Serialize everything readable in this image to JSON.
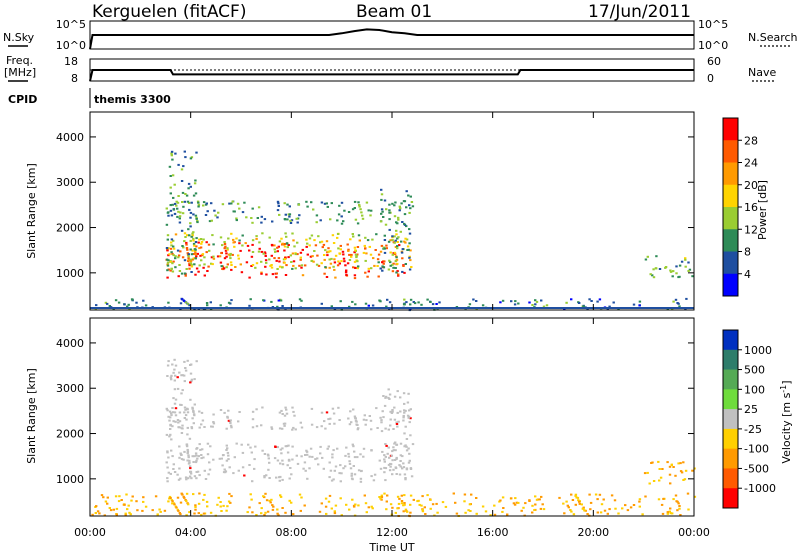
{
  "header": {
    "station": "Kerguelen (fitACF)",
    "beam": "Beam 01",
    "date": "17/Jun/2011"
  },
  "noise_panel": {
    "left_label": "N.Sky",
    "left_ticks": [
      "10^5",
      "10^0"
    ],
    "right_ticks": [
      "10^5",
      "10^0"
    ],
    "right_label": "N.Search"
  },
  "freq_panel": {
    "label_line1": "Freq.",
    "label_line2": "[MHz]",
    "left_ticks": [
      "18",
      "8"
    ],
    "right_ticks": [
      "60",
      "0"
    ],
    "right_label": "Nave"
  },
  "cpid": {
    "label": "CPID",
    "value": "themis 3300"
  },
  "power_colorbar": {
    "label": "Power [dB]",
    "tick_labels": [
      "28",
      "24",
      "20",
      "16",
      "12",
      "8",
      "4"
    ],
    "colors": [
      "#ff0000",
      "#ff5a00",
      "#ff9a00",
      "#ffd400",
      "#9acd32",
      "#2e8b57",
      "#1f4fa0",
      "#0000ff"
    ]
  },
  "velocity_colorbar": {
    "label_main": "Velocity  [m s",
    "label_exp": "-1",
    "label_end": "]",
    "tick_labels": [
      "1000",
      "500",
      "100",
      "25",
      "-25",
      "-100",
      "-500",
      "-1000"
    ],
    "colors": [
      "#0030c0",
      "#2e7d6b",
      "#55aa55",
      "#6fdc3c",
      "#c0c0c0",
      "#ffd000",
      "#ff9a00",
      "#ff5a00",
      "#ff0000"
    ]
  },
  "y_axis": {
    "label": "Slant Range [km]",
    "tick_labels": [
      "4000",
      "3000",
      "2000",
      "1000"
    ]
  },
  "x_axis": {
    "label": "Time UT",
    "tick_labels": [
      "00:00",
      "04:00",
      "08:00",
      "12:00",
      "16:00",
      "20:00",
      "00:00"
    ]
  },
  "chart_data": [
    {
      "type": "line",
      "panel": "noise",
      "description_series": "N.Sky (solid) noise level, roughly constant with small spikes 10:00-12:30",
      "x_hours": [
        0.0,
        0.1,
        9.5,
        10.0,
        10.5,
        11.0,
        11.5,
        12.0,
        12.5,
        13.0,
        24.0
      ],
      "series": [
        {
          "name": "N.Sky",
          "values": [
            0,
            2.5,
            2.5,
            2.8,
            3.2,
            3.5,
            3.4,
            3.0,
            2.8,
            2.5,
            2.5
          ]
        }
      ],
      "ylim": [
        0,
        5
      ]
    },
    {
      "type": "line",
      "panel": "frequency",
      "x_hours": [
        0.0,
        0.1,
        3.2,
        3.3,
        17.0,
        17.1,
        24.0
      ],
      "series": [
        {
          "name": "Freq.",
          "values": [
            8,
            13,
            13,
            11,
            11,
            13,
            13
          ]
        },
        {
          "name": "Nave",
          "values": [
            30,
            30,
            30,
            30,
            30,
            30,
            30
          ]
        }
      ],
      "ylim": [
        8,
        18
      ]
    },
    {
      "type": "heatmap",
      "panel": "power",
      "xlabel": "Time UT",
      "ylabel": "Slant Range [km]",
      "xlim_hours": [
        0,
        24
      ],
      "ylim_km": [
        180,
        4550
      ],
      "colorbar": "Power [dB]",
      "regions": [
        {
          "t_start": 3.0,
          "t_end": 12.5,
          "range_start": 900,
          "range_end": 1700,
          "value_db": 26
        },
        {
          "t_start": 3.0,
          "t_end": 12.8,
          "range_start": 1100,
          "range_end": 1900,
          "value_db": 14
        },
        {
          "t_start": 3.0,
          "t_end": 12.8,
          "range_start": 2100,
          "range_end": 2600,
          "value_db": 8
        },
        {
          "t_start": 3.0,
          "t_end": 4.2,
          "range_start": 1000,
          "range_end": 3700,
          "value_db": 8
        },
        {
          "t_start": 11.5,
          "t_end": 12.7,
          "range_start": 1000,
          "range_end": 3000,
          "value_db": 8
        },
        {
          "t_start": 22.0,
          "t_end": 24.0,
          "range_start": 900,
          "range_end": 1400,
          "value_db": 10
        },
        {
          "t_start": 0.0,
          "t_end": 24.0,
          "range_start": 200,
          "range_end": 450,
          "value_db": 6
        }
      ]
    },
    {
      "type": "heatmap",
      "panel": "velocity",
      "xlabel": "Time UT",
      "ylabel": "Slant Range [km]",
      "xlim_hours": [
        0,
        24
      ],
      "ylim_km": [
        180,
        4550
      ],
      "colorbar": "Velocity [m s-1]",
      "regions": [
        {
          "t_start": 3.0,
          "t_end": 12.8,
          "range_start": 950,
          "range_end": 1800,
          "value_ms": 0
        },
        {
          "t_start": 3.0,
          "t_end": 12.8,
          "range_start": 2100,
          "range_end": 2600,
          "value_ms": 0
        },
        {
          "t_start": 3.0,
          "t_end": 4.2,
          "range_start": 1000,
          "range_end": 3700,
          "value_ms": 0
        },
        {
          "t_start": 11.5,
          "t_end": 12.7,
          "range_start": 1000,
          "range_end": 3000,
          "value_ms": 0
        },
        {
          "t_start": 11.5,
          "t_end": 12.7,
          "range_start": 450,
          "range_end": 700,
          "value_ms": -300
        },
        {
          "t_start": 22.0,
          "t_end": 24.0,
          "range_start": 900,
          "range_end": 1400,
          "value_ms": -100
        },
        {
          "t_start": 0.0,
          "t_end": 24.0,
          "range_start": 200,
          "range_end": 700,
          "value_ms": -60
        }
      ]
    }
  ]
}
